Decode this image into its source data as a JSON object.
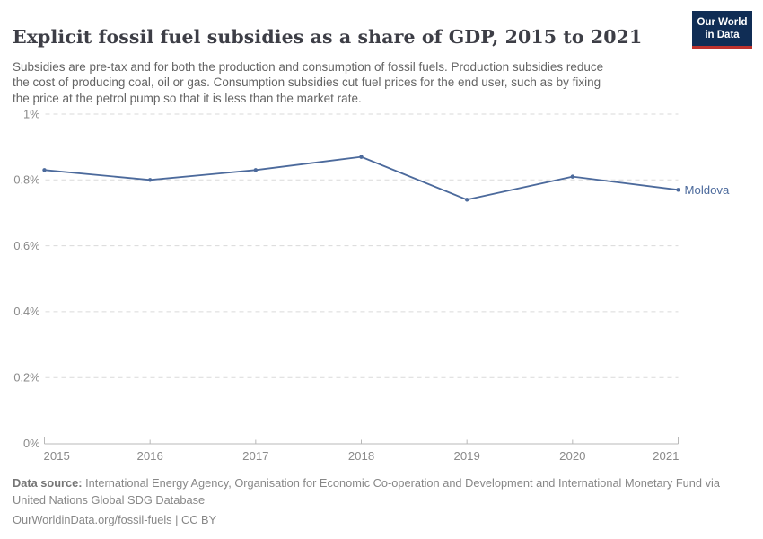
{
  "header": {
    "title": "Explicit fossil fuel subsidies as a share of GDP, 2015 to 2021",
    "subtitle_lines": [
      "Subsidies are pre-tax and for both the production and consumption of fossil fuels. Production subsidies reduce",
      "the cost of producing coal, oil or gas. Consumption subsidies cut fuel prices for the end user, such as by fixing",
      "the price at the petrol pump so that it is less than the market rate."
    ],
    "logo": {
      "line1": "Our World",
      "line2": "in Data",
      "bg_color": "#102d55",
      "accent_color": "#be322d"
    }
  },
  "chart_data": {
    "type": "line",
    "title": "Explicit fossil fuel subsidies as a share of GDP, 2015 to 2021",
    "x": [
      2015,
      2016,
      2017,
      2018,
      2019,
      2020,
      2021
    ],
    "x_tick_labels": [
      "2015",
      "2016",
      "2017",
      "2018",
      "2019",
      "2020",
      "2021"
    ],
    "series": [
      {
        "name": "Moldova",
        "color": "#4c6a9c",
        "values": [
          0.83,
          0.8,
          0.83,
          0.87,
          0.74,
          0.81,
          0.77
        ]
      }
    ],
    "unit": "%",
    "xlabel": "",
    "ylabel": "",
    "ylim": [
      0,
      1
    ],
    "yticks": [
      0,
      0.2,
      0.4,
      0.6,
      0.8,
      1
    ],
    "ytick_labels": [
      "0%",
      "0.2%",
      "0.4%",
      "0.6%",
      "0.8%",
      "1%"
    ],
    "grid": "horizontal-dashed",
    "legend_position": "right-of-last-point"
  },
  "footer": {
    "datasource_label": "Data source:",
    "datasource_lines": [
      "International Energy Agency, Organisation for Economic Co-operation and Development and International Monetary Fund via",
      "United Nations Global SDG Database"
    ],
    "link_line": "OurWorldinData.org/fossil-fuels | CC BY"
  },
  "colors": {
    "line": "#4c6a9c",
    "title_text": "#3d3e46",
    "subtitle_text": "#646464",
    "axis_label_text": "#8a8a8a",
    "gridline": "#dadada",
    "axis_line": "#b8b8b8",
    "footer_text": "#878787"
  }
}
